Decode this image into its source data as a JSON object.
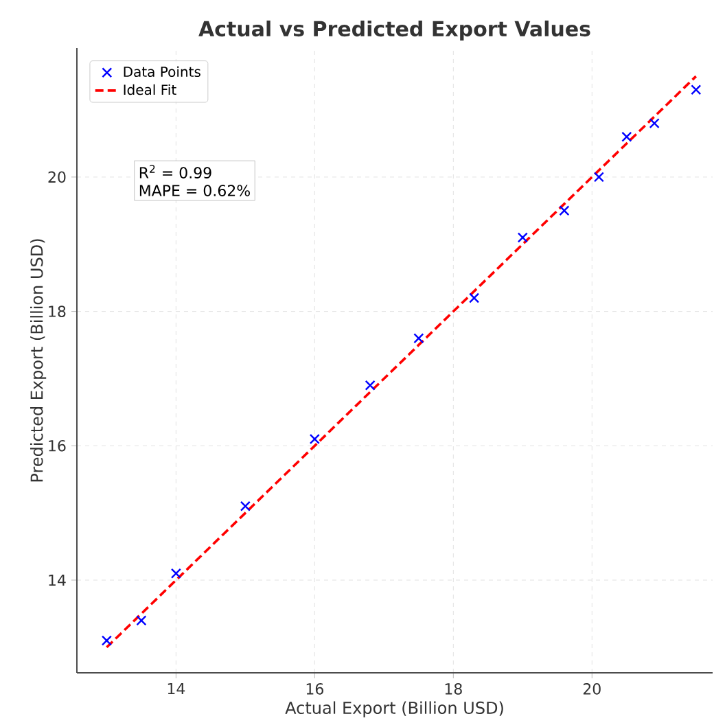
{
  "chart_data": {
    "type": "scatter",
    "title": "Actual vs Predicted Export Values",
    "xlabel": "Actual Export (Billion USD)",
    "ylabel": "Predicted Export (Billion USD)",
    "xlim": [
      12.57,
      21.74
    ],
    "ylim": [
      12.62,
      21.92
    ],
    "xticks": [
      14,
      16,
      18,
      20
    ],
    "yticks": [
      14,
      16,
      18,
      20
    ],
    "grid": true,
    "legend": "top left",
    "series": [
      {
        "name": "Data Points",
        "marker": "cross",
        "color": "#0000ff",
        "x": [
          13,
          13.5,
          14,
          15,
          16,
          16.8,
          17.5,
          18.3,
          19,
          19.6,
          20.1,
          20.5,
          20.9,
          21.5
        ],
        "values": [
          13.1,
          13.4,
          14.1,
          15.1,
          16.1,
          16.9,
          17.6,
          18.2,
          19.1,
          19.5,
          20,
          20.6,
          20.8,
          21.3
        ]
      },
      {
        "name": "Ideal Fit",
        "type": "line",
        "line_style": "dashed",
        "color": "#ff0000",
        "x": [
          13,
          21.5
        ],
        "values": [
          13,
          21.5
        ]
      }
    ],
    "annotations": [
      "R$^{2}$ = 0.99",
      "MAPE = 0.62%"
    ]
  }
}
